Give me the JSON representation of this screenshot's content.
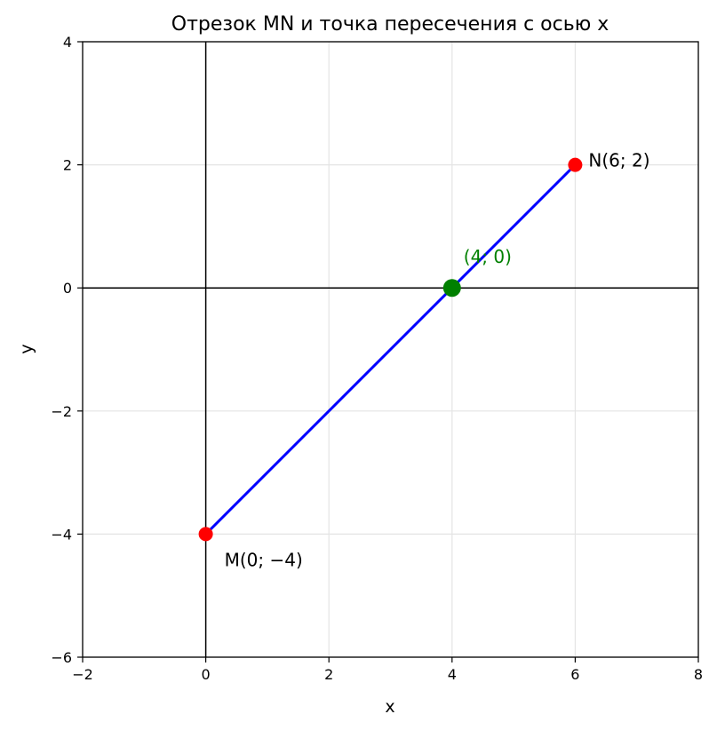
{
  "chart_data": {
    "type": "line",
    "title": "Отрезок MN и точка пересечения с осью x",
    "xlabel": "x",
    "ylabel": "y",
    "xlim": [
      -2,
      8
    ],
    "ylim": [
      -6,
      4
    ],
    "xticks": [
      -2,
      0,
      2,
      4,
      6,
      8
    ],
    "yticks": [
      -6,
      -4,
      -2,
      0,
      2,
      4
    ],
    "xtick_labels": [
      "−2",
      "0",
      "2",
      "4",
      "6",
      "8"
    ],
    "ytick_labels": [
      "−6",
      "−4",
      "−2",
      "0",
      "2",
      "4"
    ],
    "grid": true,
    "axes_lines": {
      "x_axis_at_y": 0,
      "y_axis_at_x": 0
    },
    "segment": {
      "x": [
        0,
        6
      ],
      "y": [
        -4,
        2
      ],
      "color": "#0000ff"
    },
    "points": [
      {
        "x": 0,
        "y": -4,
        "label": "M(0; −4)",
        "color": "#ff0000",
        "label_color": "#000000",
        "label_offset": "below-right"
      },
      {
        "x": 6,
        "y": 2,
        "label": "N(6; 2)",
        "color": "#ff0000",
        "label_color": "#000000",
        "label_offset": "right"
      },
      {
        "x": 4,
        "y": 0,
        "label": "(4; 0)",
        "color": "#008000",
        "label_color": "#008000",
        "label_offset": "above-right"
      }
    ]
  }
}
